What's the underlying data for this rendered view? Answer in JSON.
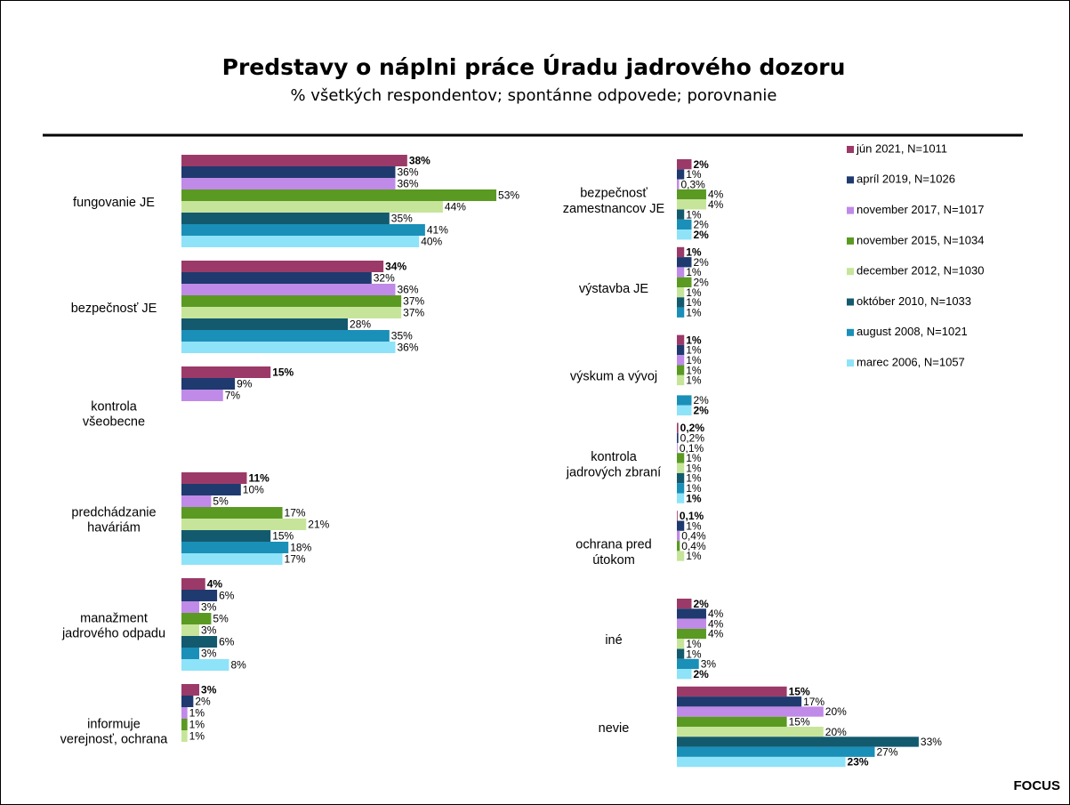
{
  "chart_data": {
    "type": "bar",
    "orientation": "horizontal",
    "title": "Predstavy o náplni práce Úradu jadrového dozoru",
    "subtitle": "% všetkých respondentov; spontánne odpovede; porovnanie",
    "source": "FOCUS",
    "categories": [
      "fungovanie JE",
      "bezpečnosť JE",
      "kontrola\nvšeobecne",
      "predchádzanie\nhaváriám",
      "manažment\njadrového odpadu",
      "informuje\nverejnosť, ochrana",
      "bezpečnosť\nzamestnancov JE",
      "výstavba JE",
      "výskum a vývoj",
      "kontrola\njadrových zbraní",
      "ochrana pred\nútokom",
      "iné",
      "nevie"
    ],
    "series": [
      {
        "name": "jún 2021, N=1011",
        "color": "#9b3a68",
        "values": [
          38,
          34,
          15,
          11,
          4,
          3,
          2,
          1,
          1,
          0.2,
          0.1,
          2,
          15
        ],
        "value_labels": [
          "38%",
          "34%",
          "15%",
          "11%",
          "4%",
          "3%",
          "2%",
          "1%",
          "1%",
          "0,2%",
          "0,1%",
          "2%",
          "15%"
        ]
      },
      {
        "name": "apríl 2019, N=1026",
        "color": "#1f3a6e",
        "values": [
          36,
          32,
          9,
          10,
          6,
          2,
          1,
          2,
          1,
          0.2,
          1,
          4,
          17
        ],
        "value_labels": [
          "36%",
          "32%",
          "9%",
          "10%",
          "6%",
          "2%",
          "1%",
          "2%",
          "1%",
          "0,2%",
          "1%",
          "4%",
          "17%"
        ]
      },
      {
        "name": "november 2017, N=1017",
        "color": "#c08ae8",
        "values": [
          36,
          36,
          7,
          5,
          3,
          1,
          0.3,
          1,
          1,
          0.1,
          0.4,
          4,
          20
        ],
        "value_labels": [
          "36%",
          "36%",
          "7%",
          "5%",
          "3%",
          "1%",
          "0,3%",
          "1%",
          "1%",
          "0,1%",
          "0,4%",
          "4%",
          "20%"
        ]
      },
      {
        "name": "november 2015, N=1034",
        "color": "#5a9a22",
        "values": [
          53,
          37,
          null,
          17,
          5,
          1,
          4,
          2,
          1,
          1,
          0.4,
          4,
          15
        ],
        "value_labels": [
          "53%",
          "37%",
          null,
          "17%",
          "5%",
          "1%",
          "4%",
          "2%",
          "1%",
          "1%",
          "0,4%",
          "4%",
          "15%"
        ]
      },
      {
        "name": "december 2012, N=1030",
        "color": "#c7e59a",
        "values": [
          44,
          37,
          null,
          21,
          3,
          1,
          4,
          1,
          1,
          1,
          1,
          1,
          20
        ],
        "value_labels": [
          "44%",
          "37%",
          null,
          "21%",
          "3%",
          "1%",
          "4%",
          "1%",
          "1%",
          "1%",
          "1%",
          "1%",
          "20%"
        ]
      },
      {
        "name": "október 2010, N=1033",
        "color": "#135a6e",
        "values": [
          35,
          28,
          null,
          15,
          6,
          null,
          1,
          1,
          null,
          1,
          null,
          1,
          33
        ],
        "value_labels": [
          "35%",
          "28%",
          null,
          "15%",
          "6%",
          null,
          "1%",
          "1%",
          null,
          "1%",
          null,
          "1%",
          "33%"
        ]
      },
      {
        "name": "august 2008, N=1021",
        "color": "#1a8fb8",
        "values": [
          41,
          35,
          null,
          18,
          3,
          null,
          2,
          1,
          2,
          1,
          null,
          3,
          27
        ],
        "value_labels": [
          "41%",
          "35%",
          null,
          "18%",
          "3%",
          null,
          "2%",
          "1%",
          "2%",
          "1%",
          null,
          "3%",
          "27%"
        ]
      },
      {
        "name": "marec 2006, N=1057",
        "color": "#8ee3f8",
        "values": [
          40,
          36,
          null,
          17,
          8,
          null,
          2,
          null,
          2,
          1,
          null,
          2,
          23
        ],
        "value_labels": [
          "40%",
          "36%",
          null,
          "17%",
          "8%",
          null,
          "2%",
          null,
          "2%",
          "1%",
          null,
          "2%",
          "23%"
        ]
      }
    ]
  }
}
